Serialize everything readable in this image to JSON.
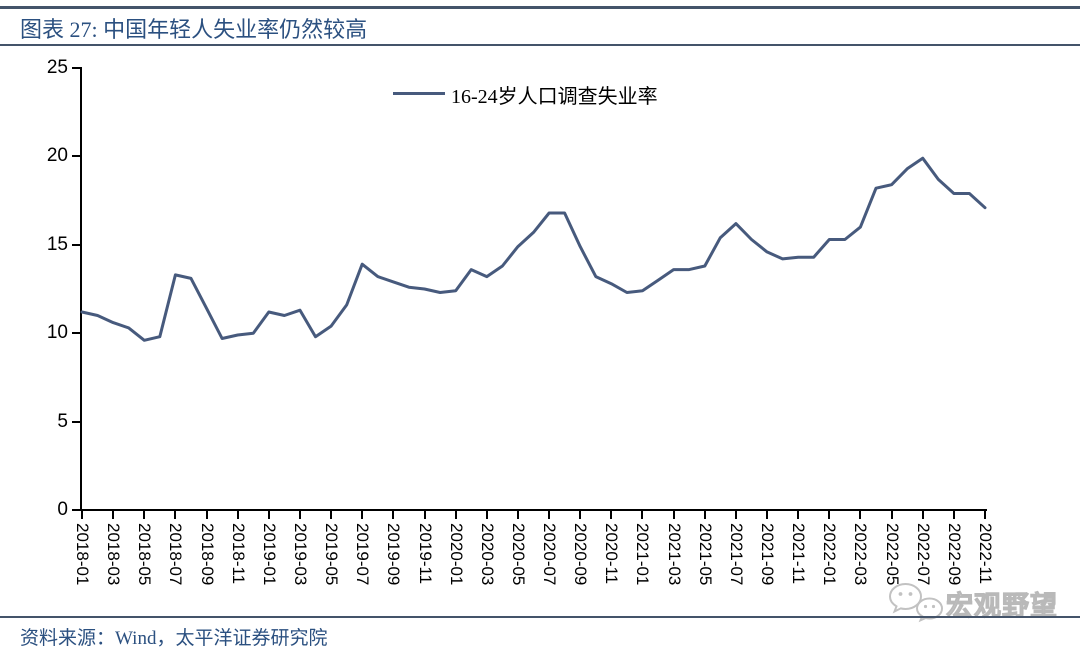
{
  "header": {
    "title": "图表 27: 中国年轻人失业率仍然较高"
  },
  "legend": {
    "label": "16-24岁人口调查失业率"
  },
  "footer": {
    "source": "资料来源：Wind，太平洋证券研究院"
  },
  "watermark": {
    "text": "宏观野望",
    "icon": "wechat-icon"
  },
  "colors": {
    "title_blue": "#2B5080",
    "rule": "#44546A",
    "series_line": "#475A7D",
    "axis": "#000000",
    "watermark_gray": "#C2C2C2"
  },
  "chart_data": {
    "type": "line",
    "title": "图表 27: 中国年轻人失业率仍然较高",
    "xlabel": "",
    "ylabel": "",
    "ylim": [
      0,
      25
    ],
    "yticks": [
      0,
      5,
      10,
      15,
      20,
      25
    ],
    "grid": false,
    "legend_position": "top-center",
    "x_tick_every": 2,
    "x": [
      "2018-01",
      "2018-02",
      "2018-03",
      "2018-04",
      "2018-05",
      "2018-06",
      "2018-07",
      "2018-08",
      "2018-09",
      "2018-10",
      "2018-11",
      "2018-12",
      "2019-01",
      "2019-02",
      "2019-03",
      "2019-04",
      "2019-05",
      "2019-06",
      "2019-07",
      "2019-08",
      "2019-09",
      "2019-10",
      "2019-11",
      "2019-12",
      "2020-01",
      "2020-02",
      "2020-03",
      "2020-04",
      "2020-05",
      "2020-06",
      "2020-07",
      "2020-08",
      "2020-09",
      "2020-10",
      "2020-11",
      "2020-12",
      "2021-01",
      "2021-02",
      "2021-03",
      "2021-04",
      "2021-05",
      "2021-06",
      "2021-07",
      "2021-08",
      "2021-09",
      "2021-10",
      "2021-11",
      "2021-12",
      "2022-01",
      "2022-02",
      "2022-03",
      "2022-04",
      "2022-05",
      "2022-06",
      "2022-07",
      "2022-08",
      "2022-09",
      "2022-10",
      "2022-11"
    ],
    "series": [
      {
        "name": "16-24岁人口调查失业率",
        "color": "#475A7D",
        "values": [
          11.2,
          11.0,
          10.6,
          10.3,
          9.6,
          9.8,
          13.3,
          13.1,
          11.4,
          9.7,
          9.9,
          10.0,
          11.2,
          11.0,
          11.3,
          9.8,
          10.4,
          11.6,
          13.9,
          13.2,
          12.9,
          12.6,
          12.5,
          12.3,
          12.4,
          13.6,
          13.2,
          13.8,
          14.9,
          15.7,
          16.8,
          16.8,
          14.9,
          13.2,
          12.8,
          12.3,
          12.4,
          13.0,
          13.6,
          13.6,
          13.8,
          15.4,
          16.2,
          15.3,
          14.6,
          14.2,
          14.3,
          14.3,
          15.3,
          15.3,
          16.0,
          18.2,
          18.4,
          19.3,
          19.9,
          18.7,
          17.9,
          17.9,
          17.1
        ]
      }
    ]
  }
}
